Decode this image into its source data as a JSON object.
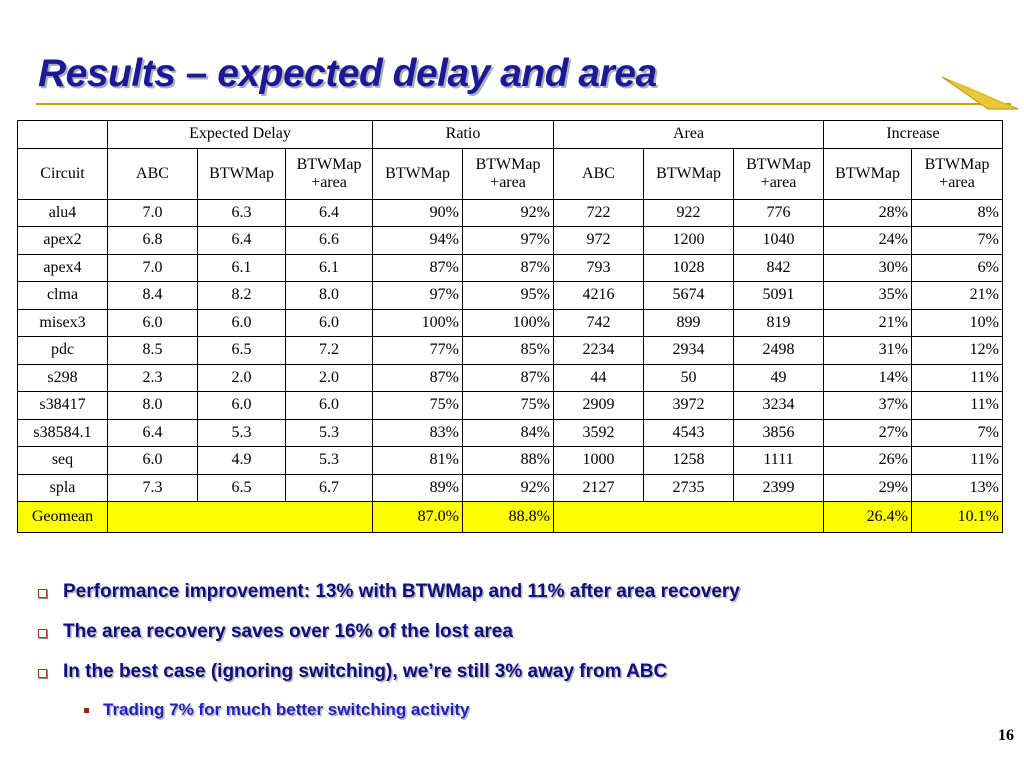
{
  "slide": {
    "title": "Results – expected delay and area",
    "page_number": "16"
  },
  "table": {
    "group_headers": [
      "Expected Delay",
      "Ratio",
      "Area",
      "Increase"
    ],
    "sub_headers": {
      "circuit": "Circuit",
      "abc": "ABC",
      "btwmap": "BTWMap",
      "btwmap_area_1": "BTWMap",
      "btwmap_area_2": "+area"
    },
    "rows": [
      [
        "alu4",
        "7.0",
        "6.3",
        "6.4",
        "90%",
        "92%",
        "722",
        "922",
        "776",
        "28%",
        "8%"
      ],
      [
        "apex2",
        "6.8",
        "6.4",
        "6.6",
        "94%",
        "97%",
        "972",
        "1200",
        "1040",
        "24%",
        "7%"
      ],
      [
        "apex4",
        "7.0",
        "6.1",
        "6.1",
        "87%",
        "87%",
        "793",
        "1028",
        "842",
        "30%",
        "6%"
      ],
      [
        "clma",
        "8.4",
        "8.2",
        "8.0",
        "97%",
        "95%",
        "4216",
        "5674",
        "5091",
        "35%",
        "21%"
      ],
      [
        "misex3",
        "6.0",
        "6.0",
        "6.0",
        "100%",
        "100%",
        "742",
        "899",
        "819",
        "21%",
        "10%"
      ],
      [
        "pdc",
        "8.5",
        "6.5",
        "7.2",
        "77%",
        "85%",
        "2234",
        "2934",
        "2498",
        "31%",
        "12%"
      ],
      [
        "s298",
        "2.3",
        "2.0",
        "2.0",
        "87%",
        "87%",
        "44",
        "50",
        "49",
        "14%",
        "11%"
      ],
      [
        "s38417",
        "8.0",
        "6.0",
        "6.0",
        "75%",
        "75%",
        "2909",
        "3972",
        "3234",
        "37%",
        "11%"
      ],
      [
        "s38584.1",
        "6.4",
        "5.3",
        "5.3",
        "83%",
        "84%",
        "3592",
        "4543",
        "3856",
        "27%",
        "7%"
      ],
      [
        "seq",
        "6.0",
        "4.9",
        "5.3",
        "81%",
        "88%",
        "1000",
        "1258",
        "1111",
        "26%",
        "11%"
      ],
      [
        "spla",
        "7.3",
        "6.5",
        "6.7",
        "89%",
        "92%",
        "2127",
        "2735",
        "2399",
        "29%",
        "13%"
      ]
    ],
    "geomean": {
      "label": "Geomean",
      "ratio_btwmap": "87.0%",
      "ratio_btwmap_area": "88.8%",
      "increase_btwmap": "26.4%",
      "increase_btwmap_area": "10.1%"
    },
    "highlight_color": "#ffff00"
  },
  "bullets": [
    "Performance improvement: 13% with BTWMap and 11% after area recovery",
    "The area recovery saves over 16% of the lost area",
    "In the best case (ignoring switching), we’re still 3% away from ABC"
  ],
  "sub_bullets": [
    "Trading 7% for much better switching activity"
  ],
  "colors": {
    "title": "#1a1a99",
    "bullet_text": "#0d0d80",
    "sub_bullet_text": "#2020c0",
    "accent_gold": "#c8a000"
  },
  "icons": {
    "bullet": "hollow-square-icon",
    "sub_bullet": "filled-square-icon",
    "corner": "gold-arrow-icon"
  }
}
